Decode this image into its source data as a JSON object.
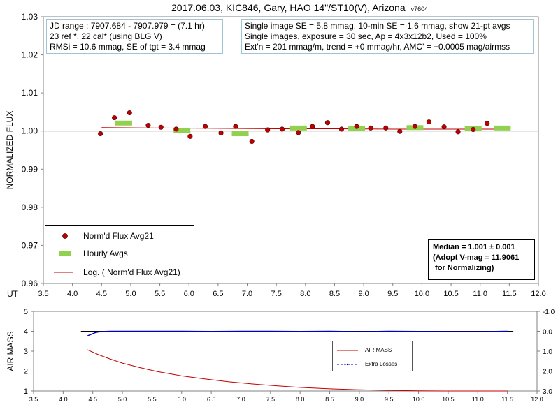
{
  "title": "2017.06.03, KIC846, Gary, HAO 14\"/ST10(V), Arizona",
  "title_version": "v7604",
  "info_left": [
    "JD range : 7907.684 - 7907.979 = (7.1 hr)",
    "23 ref *, 22 cal* (using BLG V)",
    "RMSi = 10.6 mmag, SE of tgt = 3.4 mmag"
  ],
  "info_right": [
    "Single image SE = 5.8 mmag, 10-min SE = 1.6 mmag, show 21-pt avgs",
    "Single images, exposure = 30 sec, Ap = 4x3x12b2, Used = 100%",
    "Ext'n = 201 mmag/m, trend = +0 mmag/hr, AMC' = +0.0005 mag/airmss"
  ],
  "legend": {
    "items": [
      "Norm'd Flux Avg21",
      "Hourly Avgs",
      "Log. ( Norm'd Flux Avg21)"
    ]
  },
  "median_box": [
    "Median = 1.001 ± 0.001",
    "(Adopt V-mag = 11.9061",
    " for Normalizing)"
  ],
  "ut_label": "UT=",
  "colors": {
    "flux_point": "#c00000",
    "hourly": "#92d050",
    "trend": "#c00000",
    "airmass": "#c00000",
    "extra_losses": "#0000c0",
    "info_border": "#9ec5d2"
  },
  "chart_data": [
    {
      "type": "scatter",
      "ylabel": "NORMALIZED FLUX",
      "xlim": [
        3.5,
        12.0
      ],
      "ylim": [
        0.96,
        1.03
      ],
      "x_ticks": [
        3.5,
        4.0,
        4.5,
        5.0,
        5.5,
        6.0,
        6.5,
        7.0,
        7.5,
        8.0,
        8.5,
        9.0,
        9.5,
        10.0,
        10.5,
        11.0,
        11.5,
        12.0
      ],
      "y_ticks": [
        0.96,
        0.97,
        0.98,
        0.99,
        1.0,
        1.01,
        1.02,
        1.03
      ],
      "grid": false,
      "legend_position": "bottom-left",
      "series": [
        {
          "name": "Norm'd Flux Avg21",
          "x": [
            4.48,
            4.72,
            4.98,
            5.3,
            5.52,
            5.78,
            6.02,
            6.28,
            6.55,
            6.8,
            7.08,
            7.35,
            7.6,
            7.88,
            8.12,
            8.38,
            8.62,
            8.88,
            9.12,
            9.38,
            9.62,
            9.88,
            10.12,
            10.38,
            10.62,
            10.88,
            11.12
          ],
          "y": [
            0.9993,
            1.0035,
            1.0048,
            1.0015,
            1.001,
            1.0005,
            0.9986,
            1.0012,
            0.9995,
            1.0012,
            0.9973,
            1.0003,
            1.0005,
            0.9996,
            1.0012,
            1.0022,
            1.0005,
            1.0012,
            1.0008,
            1.0008,
            0.9999,
            1.0012,
            1.0024,
            1.0011,
            0.9998,
            1.0004,
            1.002
          ]
        },
        {
          "name": "Hourly Avgs",
          "x": [
            4.88,
            5.88,
            6.88,
            7.88,
            8.88,
            9.88,
            10.88,
            11.38
          ],
          "y": [
            1.0021,
            1.0002,
            0.9993,
            1.0008,
            1.0007,
            1.0009,
            1.0007,
            1.0008
          ]
        },
        {
          "name": "Log. ( Norm'd Flux Avg21)",
          "x": [
            4.5,
            5.5,
            6.5,
            7.5,
            8.5,
            9.5,
            10.5,
            11.4
          ],
          "y": [
            1.0009,
            1.0008,
            1.0007,
            1.0006,
            1.0006,
            1.0005,
            1.0005,
            1.0005
          ]
        }
      ],
      "reference_line": 1.0
    },
    {
      "type": "line",
      "ylabel": "AIR MASS",
      "xlim": [
        3.5,
        12.0
      ],
      "ylim": [
        1,
        5
      ],
      "y2lim": [
        3.0,
        -1.0
      ],
      "x_ticks": [
        3.5,
        4.0,
        4.5,
        5.0,
        5.5,
        6.0,
        6.5,
        7.0,
        7.5,
        8.0,
        8.5,
        9.0,
        9.5,
        10.0,
        10.5,
        11.0,
        11.5,
        12.0
      ],
      "y_ticks": [
        1,
        2,
        3,
        4,
        5
      ],
      "y2_ticks": [
        3.0,
        2.0,
        1.0,
        0.0,
        -1.0
      ],
      "legend_position": "center-right",
      "series": [
        {
          "name": "AIR MASS",
          "x": [
            4.4,
            4.6,
            4.8,
            5.0,
            5.3,
            5.6,
            6.0,
            6.4,
            6.8,
            7.2,
            7.6,
            8.0,
            8.5,
            9.0,
            9.5,
            10.0,
            10.5,
            11.0,
            11.5
          ],
          "y": [
            3.08,
            2.82,
            2.6,
            2.4,
            2.17,
            1.97,
            1.76,
            1.6,
            1.46,
            1.35,
            1.26,
            1.18,
            1.11,
            1.06,
            1.03,
            1.01,
            1.0,
            1.0,
            1.0
          ]
        },
        {
          "name": "Extra Losses",
          "x": [
            4.4,
            4.45,
            4.5,
            4.55,
            4.6,
            4.7,
            4.8,
            5.0,
            5.5,
            6.0,
            6.5,
            7.0,
            7.5,
            8.0,
            8.5,
            9.0,
            9.5,
            10.0,
            10.5,
            11.0,
            11.5
          ],
          "y": [
            0.25,
            0.18,
            0.12,
            0.06,
            0.03,
            0.01,
            0.0,
            0.0,
            0.0,
            0.0,
            0.01,
            0.0,
            0.0,
            0.01,
            0.0,
            0.02,
            0.0,
            0.01,
            0.02,
            0.02,
            0.0
          ]
        }
      ],
      "reference_line": 0.0
    }
  ]
}
